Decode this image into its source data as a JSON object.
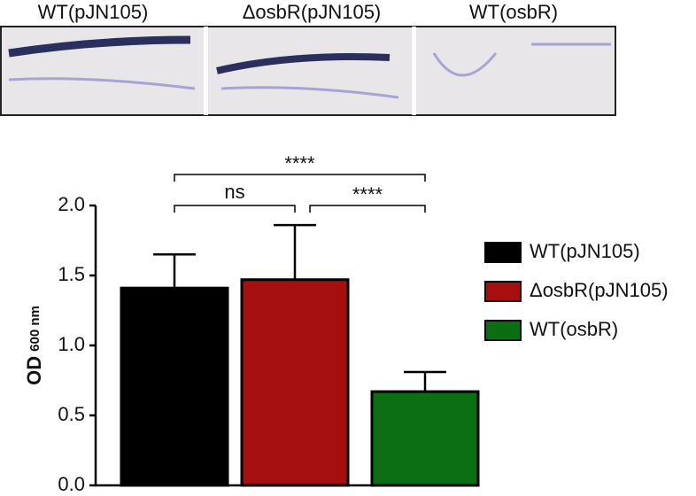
{
  "chart_data": {
    "type": "bar",
    "panel_labels": [
      "WT(pJN105)",
      "ΔosbR(pJN105)",
      "WT(osbR)"
    ],
    "ylabel": "OD",
    "ylabel_subscript": "600 nm",
    "series": [
      {
        "name": "WT(pJN105)",
        "color": "#000000",
        "values": [
          1.41
        ],
        "errors": [
          0.24
        ]
      },
      {
        "name": "ΔosbR(pJN105)",
        "color": "#a50f0f",
        "values": [
          1.47
        ],
        "errors": [
          0.39
        ]
      },
      {
        "name": "WT(osbR)",
        "color": "#0b6e12",
        "values": [
          0.67
        ],
        "errors": [
          0.14
        ]
      }
    ],
    "ylim": [
      0,
      2
    ],
    "yticks": [
      {
        "value": 0,
        "label": "0.0"
      },
      0.5,
      {
        "value": 1,
        "label": "1.0"
      },
      1.5,
      {
        "value": 2,
        "label": "2.0"
      }
    ],
    "annotations": [
      {
        "text": "ns",
        "from": 0,
        "to": 1
      },
      {
        "text": "****",
        "from": 1,
        "to": 2
      },
      {
        "text": "****",
        "from": 0,
        "to": 2
      }
    ],
    "legend": "right"
  }
}
